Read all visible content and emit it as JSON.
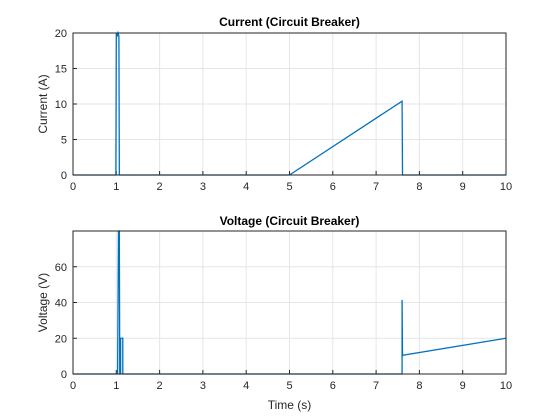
{
  "chart_data": [
    {
      "type": "line",
      "title": "Current (Circuit Breaker)",
      "xlabel": "",
      "ylabel": "Current (A)",
      "xlim": [
        0,
        10
      ],
      "ylim": [
        0,
        20
      ],
      "xticks": [
        0,
        1,
        2,
        3,
        4,
        5,
        6,
        7,
        8,
        9,
        10
      ],
      "yticks": [
        0,
        5,
        10,
        15,
        20
      ],
      "grid": true,
      "color": "#0072BD",
      "series": [
        {
          "x": [
            0,
            0.99,
            1.0,
            1.02,
            1.04,
            1.06,
            1.07,
            1.08,
            1.1,
            5.0,
            7.6,
            7.61,
            10
          ],
          "y": [
            0,
            0,
            20,
            19.5,
            20,
            19.6,
            0,
            0,
            0,
            0,
            10.4,
            0,
            0
          ]
        }
      ]
    },
    {
      "type": "line",
      "title": "Voltage (Circuit Breaker)",
      "xlabel": "Time (s)",
      "ylabel": "Voltage (V)",
      "xlim": [
        0,
        10
      ],
      "ylim": [
        0,
        80
      ],
      "xticks": [
        0,
        1,
        2,
        3,
        4,
        5,
        6,
        7,
        8,
        9,
        10
      ],
      "yticks": [
        0,
        20,
        40,
        60
      ],
      "grid": true,
      "color": "#0072BD",
      "series": [
        {
          "x": [
            0,
            0.99,
            1.0,
            1.03,
            1.05,
            1.07,
            1.08,
            1.1,
            1.1,
            1.15,
            1.15,
            1.16,
            7.6,
            7.6,
            7.61,
            7.62,
            10
          ],
          "y": [
            0,
            0,
            0,
            0,
            80,
            80,
            0,
            0,
            20,
            20,
            0,
            0,
            0,
            41.5,
            10,
            10.5,
            20
          ]
        }
      ]
    }
  ]
}
